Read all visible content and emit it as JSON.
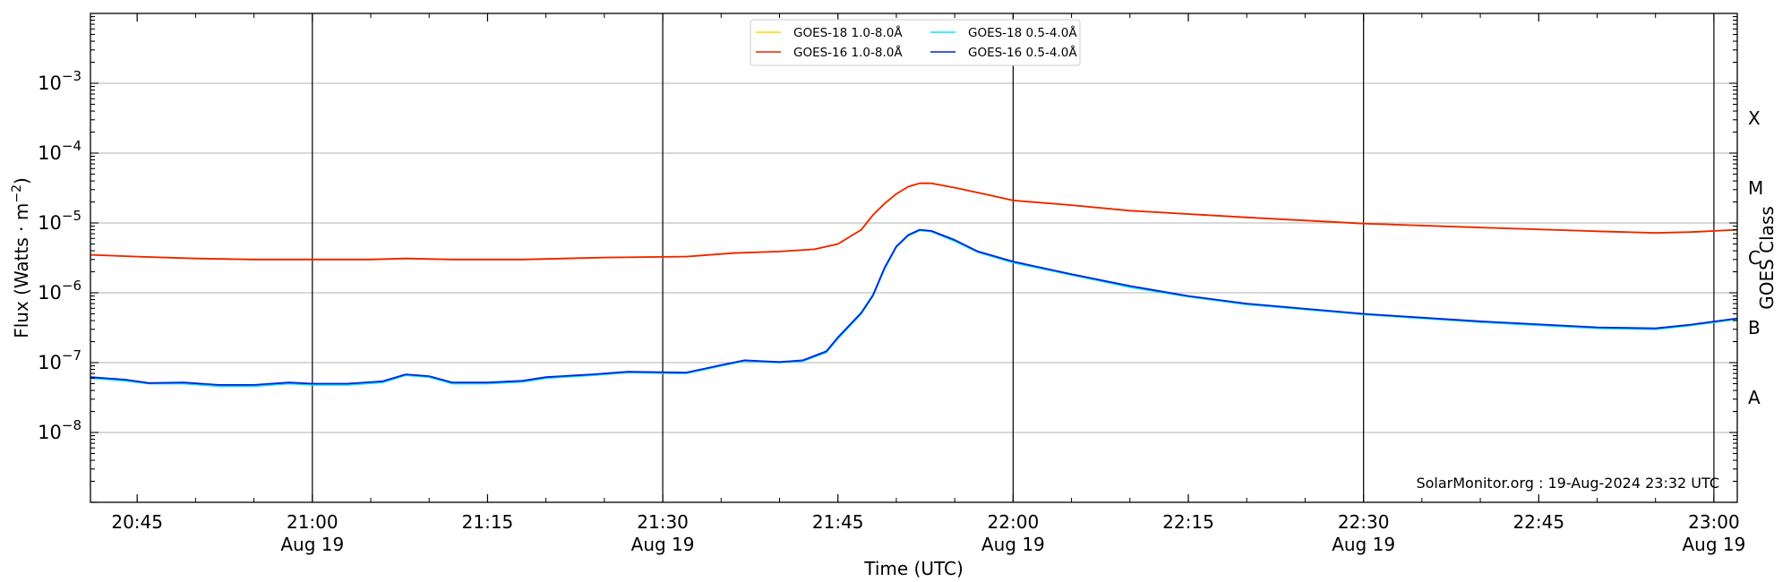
{
  "chart_data": {
    "type": "line",
    "xlabel": "Time (UTC)",
    "ylabel": "Flux (Watts · m",
    "ylabel_sup": "−2",
    "ylabel_close": ")",
    "right_label": "GOES Class",
    "yscale": "log",
    "xlim": [
      "20:41",
      "23:02"
    ],
    "ylim": [
      1e-09,
      0.01
    ],
    "grid": {
      "y": true,
      "x_major_vertical_lines": true
    },
    "legend_position": "top-center",
    "x_ticks": [
      {
        "time": "20:45",
        "label": "20:45",
        "sub": ""
      },
      {
        "time": "21:00",
        "label": "21:00",
        "sub": "Aug 19"
      },
      {
        "time": "21:15",
        "label": "21:15",
        "sub": ""
      },
      {
        "time": "21:30",
        "label": "21:30",
        "sub": "Aug 19"
      },
      {
        "time": "21:45",
        "label": "21:45",
        "sub": ""
      },
      {
        "time": "22:00",
        "label": "22:00",
        "sub": "Aug 19"
      },
      {
        "time": "22:15",
        "label": "22:15",
        "sub": ""
      },
      {
        "time": "22:30",
        "label": "22:30",
        "sub": "Aug 19"
      },
      {
        "time": "22:45",
        "label": "22:45",
        "sub": ""
      },
      {
        "time": "23:00",
        "label": "23:00",
        "sub": "Aug 19"
      }
    ],
    "y_ticks": [
      {
        "value": 1e-08,
        "base": "10",
        "exp": "−8"
      },
      {
        "value": 1e-07,
        "base": "10",
        "exp": "−7"
      },
      {
        "value": 1e-06,
        "base": "10",
        "exp": "−6"
      },
      {
        "value": 1e-05,
        "base": "10",
        "exp": "−5"
      },
      {
        "value": 0.0001,
        "base": "10",
        "exp": "−4"
      },
      {
        "value": 0.001,
        "base": "10",
        "exp": "−3"
      }
    ],
    "class_labels": [
      {
        "label": "A",
        "value": 3.16e-08
      },
      {
        "label": "B",
        "value": 3.16e-07
      },
      {
        "label": "C",
        "value": 3.16e-06
      },
      {
        "label": "M",
        "value": 3.16e-05
      },
      {
        "label": "X",
        "value": 0.000316
      }
    ],
    "vertical_lines": [
      "21:00",
      "21:30",
      "22:00",
      "22:30",
      "23:00"
    ],
    "annotation": "SolarMonitor.org : 19-Aug-2024 23:32 UTC",
    "series": [
      {
        "name": "GOES-18 1.0-8.0Å",
        "color": "#ffd500",
        "points": [
          [
            "20:41",
            3.5e-06
          ],
          [
            "20:45",
            3.3e-06
          ],
          [
            "20:50",
            3.1e-06
          ],
          [
            "20:55",
            3e-06
          ],
          [
            "21:00",
            3e-06
          ],
          [
            "21:05",
            3e-06
          ],
          [
            "21:08",
            3.1e-06
          ],
          [
            "21:12",
            3e-06
          ],
          [
            "21:18",
            3e-06
          ],
          [
            "21:25",
            3.2e-06
          ],
          [
            "21:32",
            3.3e-06
          ],
          [
            "21:36",
            3.7e-06
          ],
          [
            "21:40",
            3.9e-06
          ],
          [
            "21:43",
            4.2e-06
          ],
          [
            "21:45",
            5e-06
          ],
          [
            "21:47",
            8e-06
          ],
          [
            "21:48",
            1.3e-05
          ],
          [
            "21:49",
            1.9e-05
          ],
          [
            "21:50",
            2.6e-05
          ],
          [
            "21:51",
            3.3e-05
          ],
          [
            "21:52",
            3.7e-05
          ],
          [
            "21:53",
            3.7e-05
          ],
          [
            "21:55",
            3.2e-05
          ],
          [
            "21:58",
            2.5e-05
          ],
          [
            "22:00",
            2.1e-05
          ],
          [
            "22:05",
            1.8e-05
          ],
          [
            "22:10",
            1.5e-05
          ],
          [
            "22:20",
            1.2e-05
          ],
          [
            "22:30",
            9.8e-06
          ],
          [
            "22:40",
            8.6e-06
          ],
          [
            "22:50",
            7.6e-06
          ],
          [
            "22:55",
            7.2e-06
          ],
          [
            "22:58",
            7.4e-06
          ],
          [
            "23:02",
            8e-06
          ]
        ]
      },
      {
        "name": "GOES-18 0.5-4.0Å",
        "color": "#00e5ff",
        "points": [
          [
            "20:41",
            6e-08
          ],
          [
            "20:44",
            5.5e-08
          ],
          [
            "20:46",
            5e-08
          ],
          [
            "20:49",
            5e-08
          ],
          [
            "20:52",
            4.6e-08
          ],
          [
            "20:55",
            4.6e-08
          ],
          [
            "20:58",
            5e-08
          ],
          [
            "21:00",
            4.8e-08
          ],
          [
            "21:03",
            4.8e-08
          ],
          [
            "21:06",
            5.2e-08
          ],
          [
            "21:08",
            6.6e-08
          ],
          [
            "21:10",
            6.2e-08
          ],
          [
            "21:12",
            5e-08
          ],
          [
            "21:15",
            5e-08
          ],
          [
            "21:18",
            5.3e-08
          ],
          [
            "21:20",
            6e-08
          ],
          [
            "21:24",
            6.6e-08
          ],
          [
            "21:27",
            7.2e-08
          ],
          [
            "21:32",
            7e-08
          ],
          [
            "21:35",
            9e-08
          ],
          [
            "21:37",
            1.05e-07
          ],
          [
            "21:40",
            1e-07
          ],
          [
            "21:42",
            1.05e-07
          ],
          [
            "21:44",
            1.4e-07
          ],
          [
            "21:45",
            2.2e-07
          ],
          [
            "21:47",
            5e-07
          ],
          [
            "21:48",
            9e-07
          ],
          [
            "21:49",
            2.2e-06
          ],
          [
            "21:50",
            4.5e-06
          ],
          [
            "21:51",
            6.5e-06
          ],
          [
            "21:52",
            7.8e-06
          ],
          [
            "21:53",
            7.5e-06
          ],
          [
            "21:55",
            5.5e-06
          ],
          [
            "21:57",
            3.8e-06
          ],
          [
            "22:00",
            2.7e-06
          ],
          [
            "22:05",
            1.8e-06
          ],
          [
            "22:10",
            1.2e-06
          ],
          [
            "22:15",
            8.8e-07
          ],
          [
            "22:20",
            6.8e-07
          ],
          [
            "22:30",
            4.9e-07
          ],
          [
            "22:40",
            3.8e-07
          ],
          [
            "22:50",
            3.1e-07
          ],
          [
            "22:55",
            3e-07
          ],
          [
            "22:58",
            3.4e-07
          ],
          [
            "23:02",
            4.2e-07
          ]
        ]
      },
      {
        "name": "GOES-16 1.0-8.0Å",
        "color": "#ee2200",
        "points": [
          [
            "20:41",
            3.5e-06
          ],
          [
            "20:45",
            3.3e-06
          ],
          [
            "20:50",
            3.1e-06
          ],
          [
            "20:55",
            3e-06
          ],
          [
            "21:00",
            3e-06
          ],
          [
            "21:05",
            3e-06
          ],
          [
            "21:08",
            3.1e-06
          ],
          [
            "21:12",
            3e-06
          ],
          [
            "21:18",
            3e-06
          ],
          [
            "21:25",
            3.2e-06
          ],
          [
            "21:32",
            3.3e-06
          ],
          [
            "21:36",
            3.7e-06
          ],
          [
            "21:40",
            3.9e-06
          ],
          [
            "21:43",
            4.2e-06
          ],
          [
            "21:45",
            5e-06
          ],
          [
            "21:47",
            8e-06
          ],
          [
            "21:48",
            1.3e-05
          ],
          [
            "21:49",
            1.9e-05
          ],
          [
            "21:50",
            2.6e-05
          ],
          [
            "21:51",
            3.3e-05
          ],
          [
            "21:52",
            3.7e-05
          ],
          [
            "21:53",
            3.7e-05
          ],
          [
            "21:55",
            3.2e-05
          ],
          [
            "21:58",
            2.5e-05
          ],
          [
            "22:00",
            2.1e-05
          ],
          [
            "22:05",
            1.8e-05
          ],
          [
            "22:10",
            1.5e-05
          ],
          [
            "22:20",
            1.2e-05
          ],
          [
            "22:30",
            9.8e-06
          ],
          [
            "22:40",
            8.6e-06
          ],
          [
            "22:50",
            7.6e-06
          ],
          [
            "22:55",
            7.2e-06
          ],
          [
            "22:58",
            7.4e-06
          ],
          [
            "23:02",
            8e-06
          ]
        ]
      },
      {
        "name": "GOES-16 0.5-4.0Å",
        "color": "#0022dd",
        "points": [
          [
            "20:41",
            6.2e-08
          ],
          [
            "20:44",
            5.7e-08
          ],
          [
            "20:46",
            5.1e-08
          ],
          [
            "20:49",
            5.2e-08
          ],
          [
            "20:52",
            4.8e-08
          ],
          [
            "20:55",
            4.8e-08
          ],
          [
            "20:58",
            5.2e-08
          ],
          [
            "21:00",
            5e-08
          ],
          [
            "21:03",
            5e-08
          ],
          [
            "21:06",
            5.4e-08
          ],
          [
            "21:08",
            6.8e-08
          ],
          [
            "21:10",
            6.4e-08
          ],
          [
            "21:12",
            5.2e-08
          ],
          [
            "21:15",
            5.2e-08
          ],
          [
            "21:18",
            5.5e-08
          ],
          [
            "21:20",
            6.2e-08
          ],
          [
            "21:24",
            6.8e-08
          ],
          [
            "21:27",
            7.4e-08
          ],
          [
            "21:32",
            7.2e-08
          ],
          [
            "21:35",
            9.2e-08
          ],
          [
            "21:37",
            1.08e-07
          ],
          [
            "21:40",
            1.02e-07
          ],
          [
            "21:42",
            1.08e-07
          ],
          [
            "21:44",
            1.45e-07
          ],
          [
            "21:45",
            2.3e-07
          ],
          [
            "21:47",
            5.2e-07
          ],
          [
            "21:48",
            9.3e-07
          ],
          [
            "21:49",
            2.3e-06
          ],
          [
            "21:50",
            4.6e-06
          ],
          [
            "21:51",
            6.7e-06
          ],
          [
            "21:52",
            8e-06
          ],
          [
            "21:53",
            7.7e-06
          ],
          [
            "21:55",
            5.7e-06
          ],
          [
            "21:57",
            3.9e-06
          ],
          [
            "22:00",
            2.8e-06
          ],
          [
            "22:05",
            1.85e-06
          ],
          [
            "22:10",
            1.25e-06
          ],
          [
            "22:15",
            9e-07
          ],
          [
            "22:20",
            7e-07
          ],
          [
            "22:30",
            5e-07
          ],
          [
            "22:40",
            3.9e-07
          ],
          [
            "22:50",
            3.2e-07
          ],
          [
            "22:55",
            3.1e-07
          ],
          [
            "22:58",
            3.5e-07
          ],
          [
            "23:02",
            4.3e-07
          ]
        ]
      }
    ],
    "legend_order": [
      0,
      1,
      2,
      3
    ]
  }
}
